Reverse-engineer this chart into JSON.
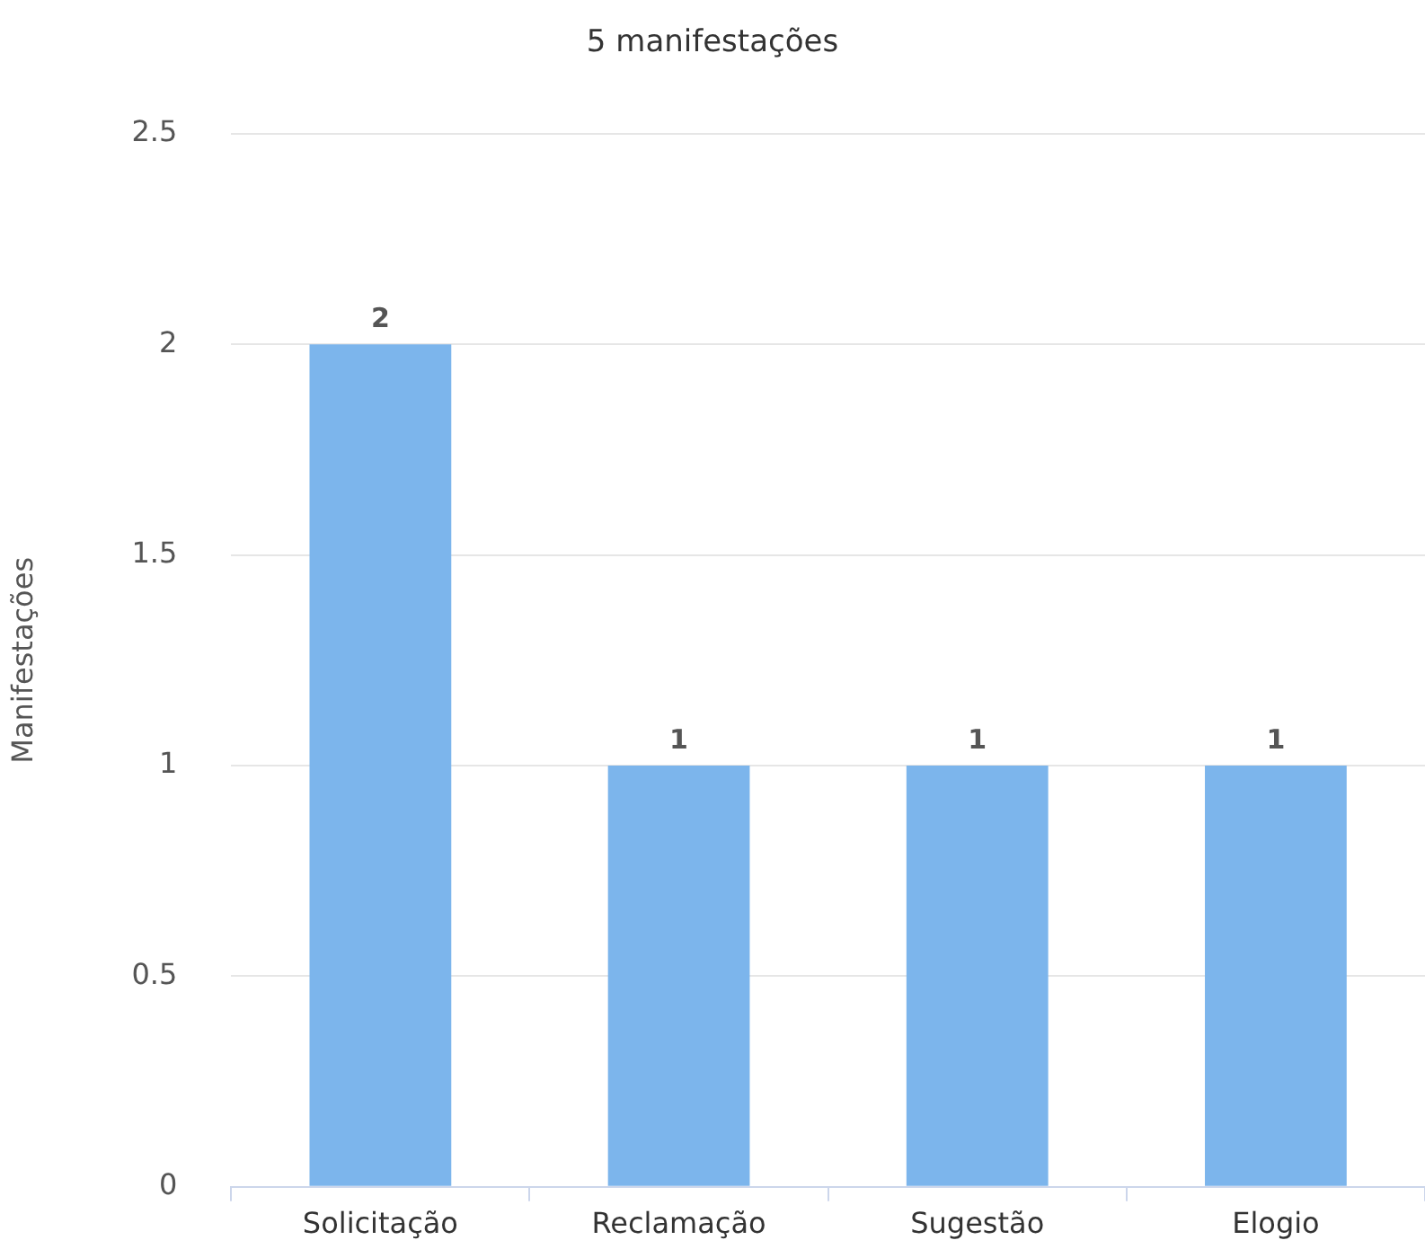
{
  "chart_data": {
    "type": "bar",
    "title": "5 manifestações",
    "ylabel": "Manifestações",
    "categories": [
      "Solicitação",
      "Reclamação",
      "Sugestão",
      "Elogio"
    ],
    "values": [
      2,
      1,
      1,
      1
    ],
    "color": "#7cb5ec",
    "ylim": [
      0,
      2.5
    ],
    "yticks": [
      0,
      0.5,
      1,
      1.5,
      2,
      2.5
    ],
    "grid": "y",
    "data_labels": true,
    "legend": false
  }
}
